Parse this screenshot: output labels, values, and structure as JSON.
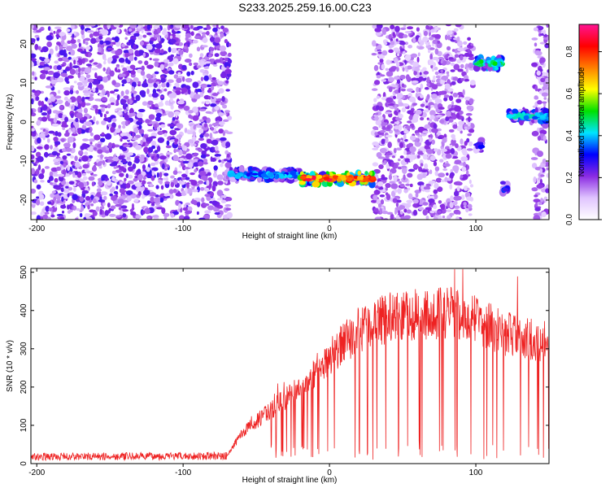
{
  "title": "S233.2025.259.16.00.C23",
  "chart_data": [
    {
      "type": "heatmap",
      "xlabel": "Height of straight line (km)",
      "ylabel": "Frequency (Hz)",
      "xlim": [
        -204,
        150
      ],
      "ylim": [
        -25,
        25
      ],
      "x_ticks": [
        -200,
        -100,
        0,
        100
      ],
      "y_ticks": [
        20,
        10,
        0,
        -10,
        -20
      ],
      "colorbar": {
        "label": "Normalized spectral amplitude",
        "range": [
          0,
          0.93
        ],
        "ticks": [
          0.0,
          0.2,
          0.4,
          0.6,
          0.8
        ],
        "colors": [
          "#ffffff",
          "#e0c4ff",
          "#8a2be2",
          "#0000ff",
          "#00e5ff",
          "#00e000",
          "#ffff00",
          "#ff7f00",
          "#ff0000",
          "#ff1493"
        ]
      },
      "noise_regions": [
        {
          "x": [
            -204,
            -68
          ],
          "y": [
            -25,
            25
          ],
          "level": 0.12
        },
        {
          "x": [
            30,
            98
          ],
          "y": [
            -25,
            25
          ],
          "level": 0.1
        },
        {
          "x": [
            140,
            150
          ],
          "y": [
            -25,
            25
          ],
          "level": 0.1
        }
      ],
      "signal_track": [
        {
          "x": [
            -68,
            -20
          ],
          "y": -13.5,
          "amp": 0.4
        },
        {
          "x": [
            -20,
            30
          ],
          "y": -14.5,
          "amp": 0.85
        },
        {
          "x": [
            100,
            118
          ],
          "y": 15,
          "amp": 0.5
        },
        {
          "x": [
            122,
            150
          ],
          "y": 1.5,
          "amp": 0.45
        },
        {
          "x": [
            100,
            104
          ],
          "y": -6,
          "amp": 0.3
        },
        {
          "x": [
            118,
            122
          ],
          "y": -17,
          "amp": 0.35
        }
      ]
    },
    {
      "type": "line",
      "xlabel": "Height of straight line (km)",
      "ylabel": "SNR (10 * v/v)",
      "xlim": [
        -204,
        150
      ],
      "ylim": [
        0,
        510
      ],
      "x_ticks": [
        -200,
        -100,
        0,
        100
      ],
      "y_ticks": [
        0,
        100,
        200,
        300,
        400,
        500
      ],
      "color": "#ee2222",
      "envelope": [
        {
          "x": -204,
          "y": 18
        },
        {
          "x": -70,
          "y": 20
        },
        {
          "x": -60,
          "y": 80
        },
        {
          "x": -40,
          "y": 140
        },
        {
          "x": -20,
          "y": 200
        },
        {
          "x": 0,
          "y": 280
        },
        {
          "x": 20,
          "y": 350
        },
        {
          "x": 40,
          "y": 380
        },
        {
          "x": 60,
          "y": 390
        },
        {
          "x": 85,
          "y": 395
        },
        {
          "x": 100,
          "y": 375
        },
        {
          "x": 120,
          "y": 340
        },
        {
          "x": 150,
          "y": 320
        }
      ]
    }
  ]
}
